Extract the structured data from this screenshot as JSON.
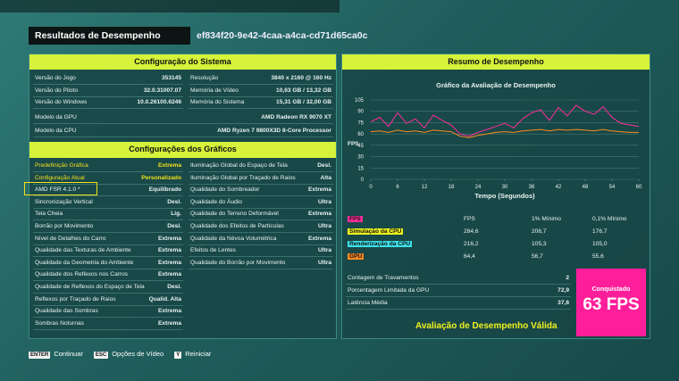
{
  "header": {
    "title": "Resultados de Desempenho",
    "id": "ef834f20-9e42-4caa-a4ca-cd71d65ca0c"
  },
  "system": {
    "title": "Configuração do Sistema",
    "left": [
      {
        "label": "Versão do Jogo",
        "value": "353145"
      },
      {
        "label": "Versão do Piloto",
        "value": "32.0.31007.07"
      },
      {
        "label": "Versão do Windows",
        "value": "10.0.26100.6246"
      }
    ],
    "right": [
      {
        "label": "Resolução",
        "value": "3840 x 2160 @ 160 Hz"
      },
      {
        "label": "Memória de Vídeo",
        "value": "10,63 GB / 13,32 GB"
      },
      {
        "label": "Memória do Sistema",
        "value": "15,31 GB / 32,00 GB"
      }
    ],
    "full": [
      {
        "label": "Modelo da GPU",
        "value": "AMD Radeon RX 9070 XT"
      },
      {
        "label": "Modelo da CPU",
        "value": "AMD Ryzen 7 9800X3D 8-Core Processor"
      }
    ]
  },
  "graphics": {
    "title": "Configurações dos Gráficos",
    "left": [
      {
        "label": "Predefinição Gráfica",
        "value": "Extrema"
      },
      {
        "label": "Configuração Atual",
        "value": "Personalizado"
      },
      {
        "label": "AMD FSR 4.1.0 *",
        "value": "Equilibrado"
      },
      {
        "label": "Sincronização Vertical",
        "value": "Desl."
      },
      {
        "label": "Tela Cheia",
        "value": "Lig."
      },
      {
        "label": "Borrão por Movimento",
        "value": "Desl."
      },
      {
        "label": "Nível de Detalhes do Carro",
        "value": "Extrema"
      },
      {
        "label": "Qualidade das Texturas de Ambiente",
        "value": "Extrema"
      },
      {
        "label": "Qualidade da Geometria do Ambiente",
        "value": "Extrema"
      },
      {
        "label": "Qualidade dos Reflexos nos Carros",
        "value": "Extrema"
      },
      {
        "label": "Qualidade de Reflexos do Espaço de Tela",
        "value": "Desl."
      },
      {
        "label": "Reflexos por Traçado de Raios",
        "value": "Qualid. Alta"
      },
      {
        "label": "Qualidade das Sombras",
        "value": "Extrema"
      },
      {
        "label": "Sombras Noturnas",
        "value": "Extrema"
      }
    ],
    "right": [
      {
        "label": "Iluminação Global do Espaço de Tela",
        "value": "Desl."
      },
      {
        "label": "Iluminação Global por Traçado de Raios",
        "value": "Alta"
      },
      {
        "label": "Qualidade do Sombreador",
        "value": "Extrema"
      },
      {
        "label": "Qualidade do Áudio",
        "value": "Ultra"
      },
      {
        "label": "Qualidade do Terreno Deformável",
        "value": "Extrema"
      },
      {
        "label": "Qualidade dos Efeitos de Partículas",
        "value": "Ultra"
      },
      {
        "label": "Qualidade da Névoa Volumétrica",
        "value": "Extrema"
      },
      {
        "label": "Efeitos de Lentes",
        "value": "Ultra"
      },
      {
        "label": "Qualidade do Borrão por Movimento",
        "value": "Ultra"
      }
    ]
  },
  "summary": {
    "title": "Resumo de Desempenho"
  },
  "chart_data": {
    "type": "line",
    "title": "Gráfico da Avaliação de Desempenho",
    "y_label": "FPS",
    "x_label": "Tempo (Segundos)",
    "x": [
      0,
      2,
      4,
      6,
      8,
      10,
      12,
      14,
      16,
      18,
      20,
      22,
      24,
      26,
      28,
      30,
      32,
      34,
      36,
      38,
      40,
      42,
      44,
      46,
      48,
      50,
      52,
      54,
      56,
      58,
      60
    ],
    "series": [
      {
        "name": "FPS",
        "color": "#ff2d9b",
        "values": [
          76,
          82,
          70,
          88,
          74,
          80,
          68,
          85,
          78,
          72,
          60,
          57,
          62,
          66,
          70,
          74,
          68,
          80,
          88,
          92,
          78,
          95,
          84,
          98,
          90,
          86,
          96,
          82,
          74,
          72,
          70
        ]
      },
      {
        "name": "GPU",
        "color": "#ff8c1a",
        "values": [
          63,
          64,
          62,
          65,
          63,
          64,
          62,
          65,
          64,
          63,
          57,
          55,
          58,
          60,
          62,
          63,
          62,
          64,
          65,
          66,
          64,
          66,
          65,
          66,
          65,
          64,
          66,
          64,
          63,
          62,
          62
        ]
      }
    ],
    "xlim": [
      0,
      60
    ],
    "xticks": [
      0,
      6,
      12,
      18,
      24,
      30,
      36,
      42,
      48,
      54,
      60
    ],
    "ylim": [
      0,
      105
    ],
    "yticks": [
      0,
      15,
      30,
      45,
      60,
      75,
      90,
      105
    ],
    "grid": true
  },
  "stats_table": {
    "columns": [
      "FPS",
      "FPS",
      "1% Mínimo",
      "0,1% Mínimo"
    ],
    "rows": [
      {
        "name": "Simulação da CPU",
        "color": "#eef21e",
        "values": [
          "284,6",
          "206,7",
          "176,7"
        ]
      },
      {
        "name": "Renderização da CPU",
        "color": "#3de0e8",
        "values": [
          "216,2",
          "105,3",
          "105,0"
        ]
      },
      {
        "name": "GPU",
        "color": "#ff8a1f",
        "values": [
          "64,4",
          "56,7",
          "55,6"
        ]
      }
    ]
  },
  "metrics": [
    {
      "label": "Contagem de Travamentos",
      "value": "2"
    },
    {
      "label": "Porcentagem Limitada da GPU",
      "value": "72,9"
    },
    {
      "label": "Latência Média",
      "value": "37,6"
    }
  ],
  "result": {
    "label": "Conquistado",
    "value": "63 FPS",
    "status": "Avaliação de Desempenho Válida"
  },
  "footer": [
    {
      "key": "ENTER",
      "label": "Continuar"
    },
    {
      "key": "ESC",
      "label": "Opções de Vídeo"
    },
    {
      "key": "Y",
      "label": "Reiniciar"
    }
  ]
}
